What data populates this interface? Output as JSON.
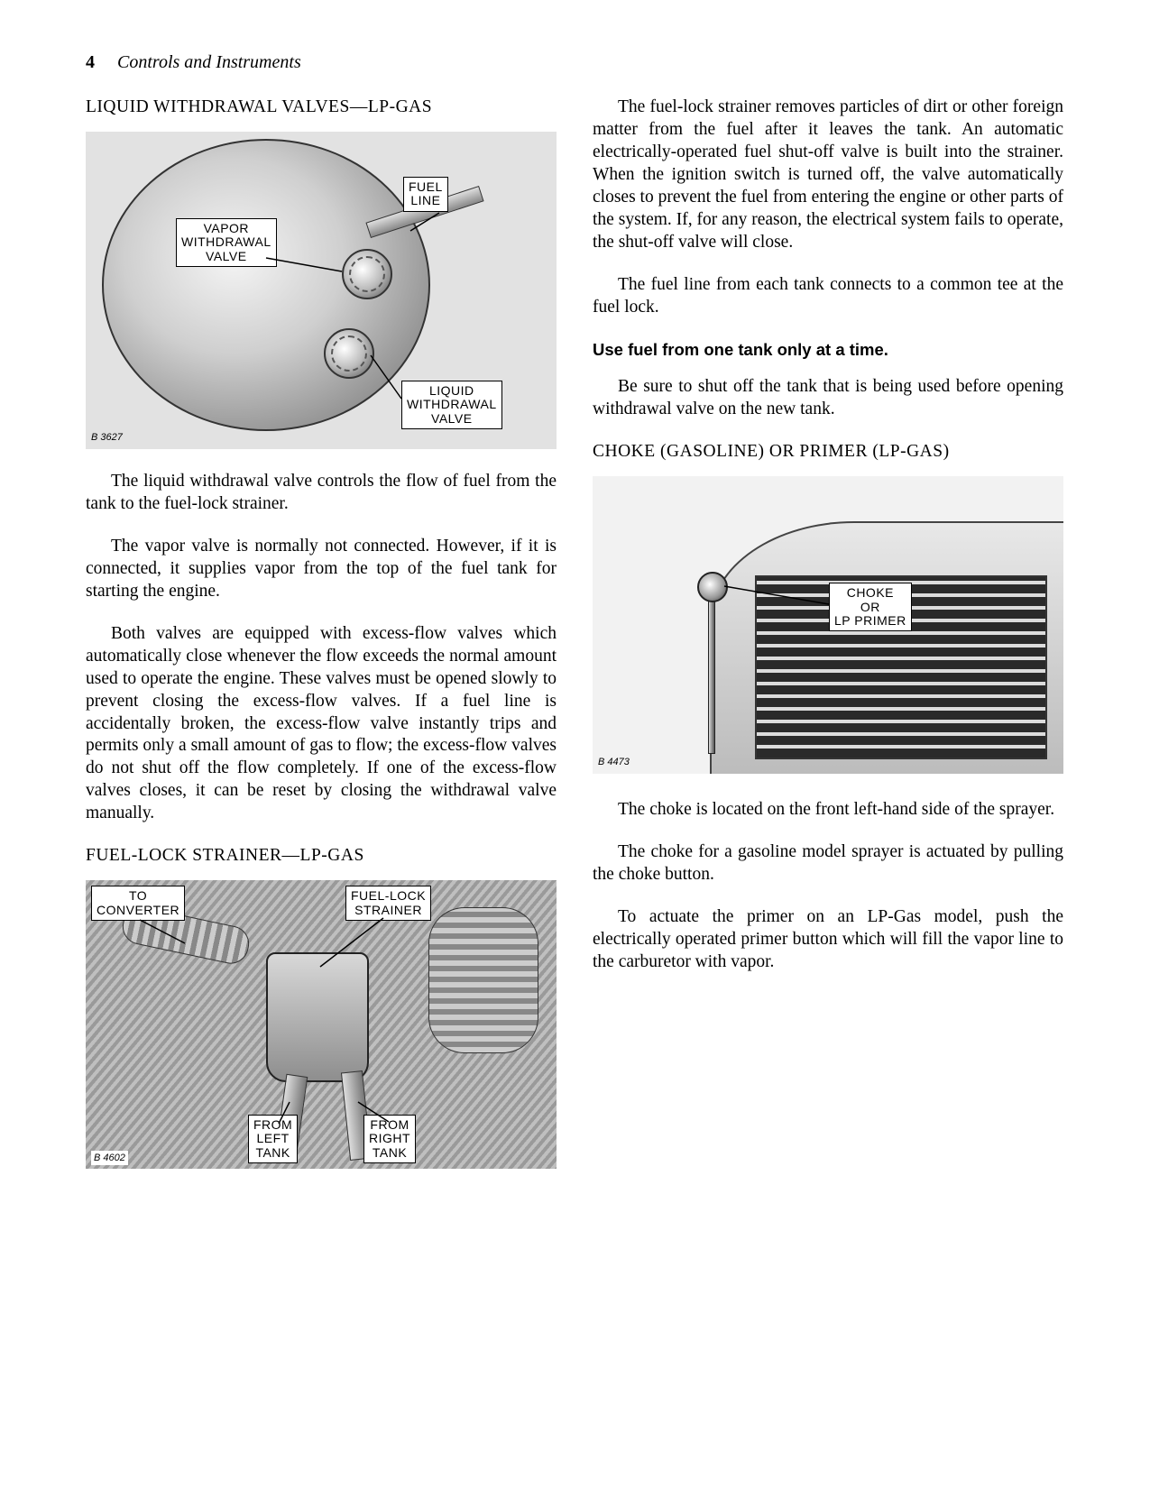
{
  "header": {
    "page_number": "4",
    "title": "Controls and Instruments"
  },
  "left": {
    "heading1": "LIQUID WITHDRAWAL VALVES—LP-GAS",
    "fig1": {
      "id_label": "B 3627",
      "callouts": {
        "fuel_line": "FUEL\nLINE",
        "vapor_valve": "VAPOR\nWITHDRAWAL\nVALVE",
        "liquid_valve": "LIQUID\nWITHDRAWAL\nVALVE"
      }
    },
    "para1": "The liquid withdrawal valve controls the flow of fuel from the tank to the fuel-lock strainer.",
    "para2": "The vapor valve is normally not connected. However, if it is connected, it supplies vapor from the top of the fuel tank for starting the engine.",
    "para3": "Both valves are equipped with excess-flow valves which automatically close whenever the flow exceeds the normal amount used to operate the engine. These valves must be opened slowly to prevent closing the excess-flow valves. If a fuel line is accidentally broken, the excess-flow valve instantly trips and permits only a small amount of gas to flow; the excess-flow valves do not shut off the flow completely. If one of the excess-flow valves closes, it can be reset by closing the withdrawal valve manually.",
    "heading2": "FUEL-LOCK STRAINER—LP-GAS",
    "fig2": {
      "id_label": "B 4602",
      "callouts": {
        "to_converter": "TO\nCONVERTER",
        "strainer": "FUEL-LOCK\nSTRAINER",
        "from_left": "FROM\nLEFT\nTANK",
        "from_right": "FROM\nRIGHT\nTANK"
      }
    }
  },
  "right": {
    "para1": "The fuel-lock strainer removes particles of dirt or other foreign matter from the fuel after it leaves the tank. An automatic electrically-operated fuel shut-off valve is built into the strainer. When the ignition switch is turned off, the valve automatically closes to prevent the fuel from entering the engine or other parts of the system. If, for any reason, the electrical system fails to operate, the shut-off valve will close.",
    "para2": "The fuel line from each tank connects to a common tee at the fuel lock.",
    "bold1": "Use fuel from one tank only at a time.",
    "para3": "Be sure to shut off the tank that is being used before opening withdrawal valve on the new tank.",
    "heading3": "CHOKE (GASOLINE) OR PRIMER (LP-GAS)",
    "fig3": {
      "id_label": "B 4473",
      "callouts": {
        "choke": "CHOKE\nOR\nLP PRIMER"
      }
    },
    "para4": "The choke is located on the front left-hand side of the sprayer.",
    "para5": "The choke for a gasoline model sprayer is actuated by pulling the choke button.",
    "para6": "To actuate the primer on an LP-Gas model, push the electrically operated primer button which will fill the vapor line to the carburetor with vapor."
  }
}
